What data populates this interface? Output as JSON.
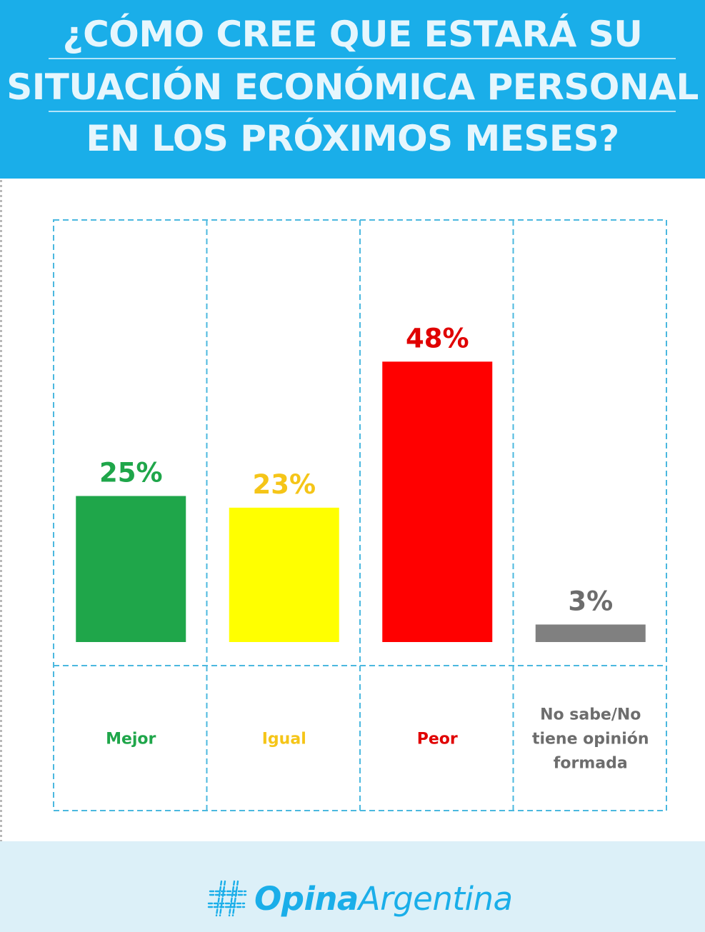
{
  "header": {
    "title_lines": [
      "¿CÓMO CREE QUE ESTARÁ SU",
      "SITUACIÓN ECONÓMICA PERSONAL",
      "EN LOS PRÓXIMOS MESES?"
    ]
  },
  "chart_data": {
    "type": "bar",
    "title": "¿CÓMO CREE QUE ESTARÁ SU SITUACIÓN ECONÓMICA PERSONAL EN LOS PRÓXIMOS MESES?",
    "categories": [
      "Mejor",
      "Igual",
      "Peor",
      "No sabe/No tiene opinión formada"
    ],
    "category_label_lines": [
      [
        "Mejor"
      ],
      [
        "Igual"
      ],
      [
        "Peor"
      ],
      [
        "No sabe/No",
        "tiene opinión",
        "formada"
      ]
    ],
    "values": [
      25,
      23,
      48,
      3
    ],
    "value_labels": [
      "25%",
      "23%",
      "48%",
      "3%"
    ],
    "unit": "%",
    "ylim": [
      0,
      60
    ],
    "grid": false,
    "legend": "none",
    "colors": {
      "bars": [
        "#1fa64a",
        "#ffff00",
        "#ff0000",
        "#808080"
      ],
      "value_labels": [
        "#1fa64a",
        "#f5c518",
        "#e00000",
        "#6d6d6d"
      ],
      "category_labels": [
        "#1fa64a",
        "#f5c518",
        "#e00000",
        "#6d6d6d"
      ],
      "frame": "#4bb8df"
    }
  },
  "brand": {
    "name_bold": "Opina",
    "name_regular": "Argentina",
    "logo_icon": "hashtag-icon",
    "color": "#1aaee9"
  }
}
